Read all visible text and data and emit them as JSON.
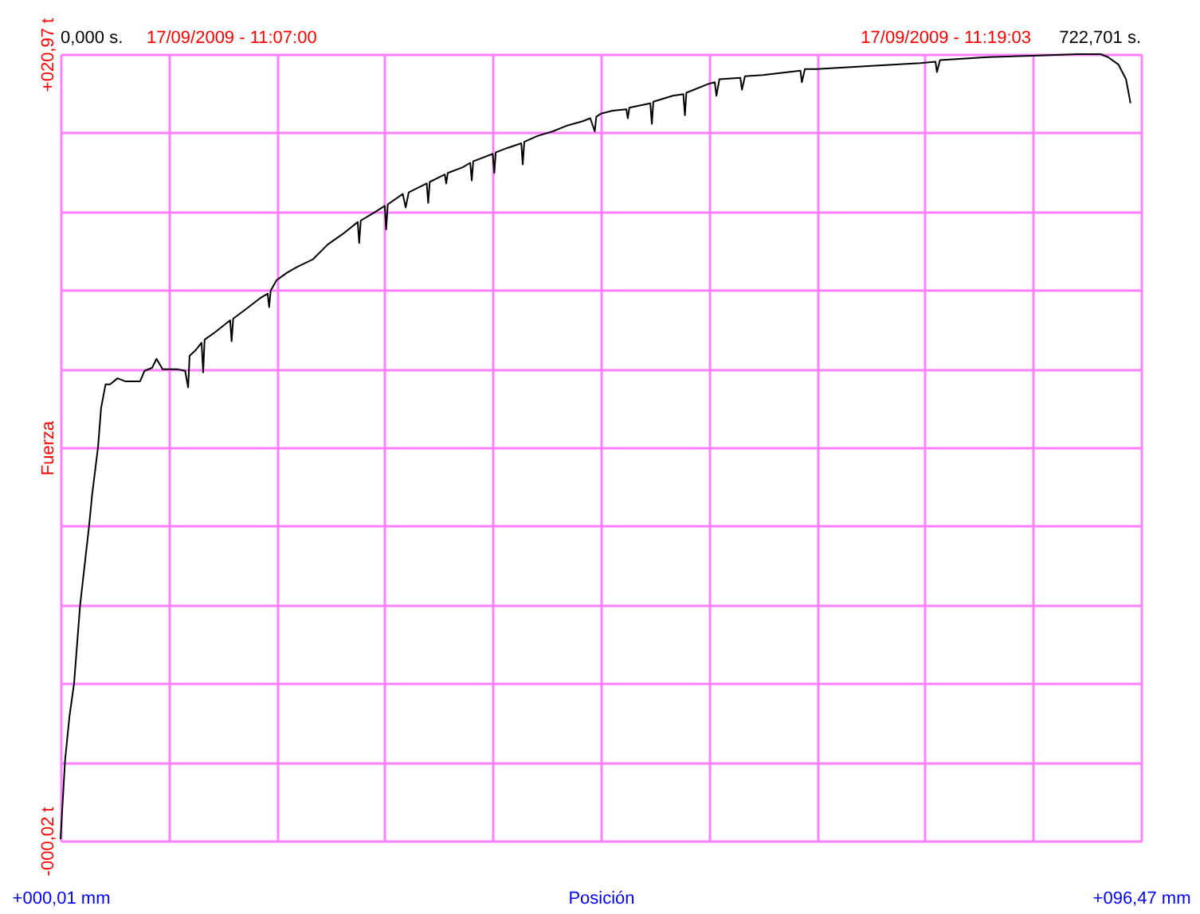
{
  "chart_data": {
    "type": "line",
    "xlabel": "Posición",
    "ylabel": "Fuerza",
    "annotations": [
      "0,000 s.",
      "17/09/2009 - 11:07:00",
      "17/09/2009 - 11:19:03",
      "722,701 s."
    ],
    "xlim": [
      0.01,
      96.47
    ],
    "ylim": [
      -0.02,
      20.97
    ],
    "xticks": [
      {
        "value": 0.01,
        "label": "+000,01 mm"
      },
      {
        "value": 9.66,
        "label": null
      },
      {
        "value": 19.3,
        "label": null
      },
      {
        "value": 28.95,
        "label": null
      },
      {
        "value": 38.59,
        "label": null
      },
      {
        "value": 48.24,
        "label": null
      },
      {
        "value": 57.89,
        "label": null
      },
      {
        "value": 67.53,
        "label": null
      },
      {
        "value": 77.18,
        "label": null
      },
      {
        "value": 86.82,
        "label": null
      },
      {
        "value": 96.47,
        "label": "+096,47 mm"
      }
    ],
    "yticks": [
      {
        "value": -0.02,
        "label": "-000,02 t"
      },
      {
        "value": 2.08,
        "label": null
      },
      {
        "value": 4.18,
        "label": null
      },
      {
        "value": 6.28,
        "label": null
      },
      {
        "value": 8.38,
        "label": null
      },
      {
        "value": 10.48,
        "label": null
      },
      {
        "value": 12.57,
        "label": null
      },
      {
        "value": 14.67,
        "label": null
      },
      {
        "value": 16.77,
        "label": null
      },
      {
        "value": 18.87,
        "label": null
      },
      {
        "value": 20.97,
        "label": "+020,97 t"
      }
    ],
    "grid": true,
    "x": [
      0.01,
      0.41,
      0.81,
      1.22,
      1.75,
      2.29,
      2.56,
      2.82,
      3.36,
      3.63,
      4.03,
      4.43,
      5.1,
      5.77,
      6.44,
      7.11,
      7.51,
      8.18,
      8.58,
      9.12,
      9.79,
      10.46,
      11.13,
      11.4,
      11.53,
      12.07,
      12.6,
      12.74,
      12.87,
      13.81,
      15.15,
      15.28,
      15.42,
      16.49,
      17.83,
      18.5,
      18.63,
      18.77,
      19.3,
      20.24,
      21.18,
      22.52,
      23.86,
      25.2,
      26.54,
      26.67,
      26.81,
      27.88,
      28.95,
      29.08,
      29.22,
      30.56,
      30.82,
      31.09,
      32.7,
      32.83,
      32.97,
      34.31,
      34.44,
      34.58,
      35.91,
      36.58,
      36.72,
      36.85,
      38.59,
      38.73,
      38.86,
      39.93,
      41.14,
      41.27,
      41.41,
      42.61,
      43.95,
      45.29,
      46.63,
      47.3,
      47.7,
      47.84,
      48.24,
      49.31,
      50.52,
      50.65,
      50.79,
      52.66,
      52.8,
      52.93,
      54.67,
      55.61,
      55.75,
      55.88,
      57.89,
      58.42,
      58.56,
      58.83,
      60.7,
      60.84,
      61.11,
      62.71,
      66.06,
      66.19,
      66.46,
      67.53,
      72.09,
      76.78,
      78.12,
      78.25,
      78.52,
      82.8,
      86.83,
      90.84,
      92.85,
      93.52,
      94.46,
      95.13,
      95.53
    ],
    "series": [
      {
        "color": "#000000",
        "values": [
          0.02,
          2.12,
          3.31,
          4.19,
          6.25,
          7.68,
          8.39,
          9.19,
          10.5,
          11.53,
          12.16,
          12.16,
          12.32,
          12.24,
          12.24,
          12.24,
          12.52,
          12.6,
          12.84,
          12.56,
          12.56,
          12.56,
          12.52,
          12.08,
          12.92,
          13.07,
          13.27,
          12.48,
          13.35,
          13.55,
          13.87,
          13.31,
          13.91,
          14.15,
          14.46,
          14.58,
          14.22,
          14.66,
          14.94,
          15.14,
          15.3,
          15.49,
          15.89,
          16.17,
          16.49,
          15.93,
          16.53,
          16.72,
          16.92,
          16.29,
          16.96,
          17.24,
          16.88,
          17.28,
          17.52,
          17.0,
          17.56,
          17.76,
          17.52,
          17.8,
          17.95,
          18.07,
          17.6,
          18.11,
          18.31,
          17.8,
          18.35,
          18.47,
          18.59,
          18.03,
          18.63,
          18.79,
          18.91,
          19.07,
          19.18,
          19.26,
          18.91,
          19.3,
          19.38,
          19.46,
          19.5,
          19.26,
          19.54,
          19.66,
          19.11,
          19.7,
          19.86,
          19.9,
          19.34,
          19.94,
          20.18,
          20.22,
          19.86,
          20.3,
          20.34,
          20.02,
          20.38,
          20.41,
          20.53,
          20.22,
          20.57,
          20.57,
          20.65,
          20.73,
          20.77,
          20.49,
          20.81,
          20.89,
          20.93,
          20.97,
          20.97,
          20.89,
          20.69,
          20.3,
          19.66
        ]
      }
    ]
  }
}
